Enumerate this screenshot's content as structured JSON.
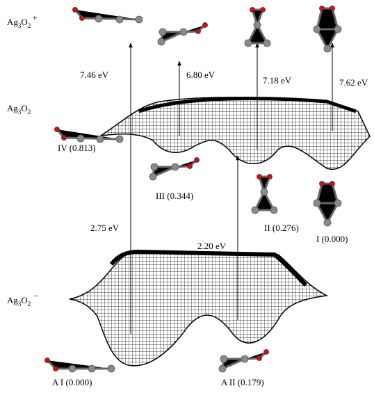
{
  "species_labels": {
    "cation": {
      "element1": "Ag",
      "count1": "3",
      "element2": "O",
      "count2": "2",
      "charge": "+"
    },
    "neutral": {
      "element1": "Ag",
      "count1": "3",
      "element2": "O",
      "count2": "2"
    },
    "anion": {
      "element1": "Ag",
      "count1": "3",
      "element2": "O",
      "count2": "2",
      "charge": "−"
    }
  },
  "transitions": [
    "7.46 eV",
    "6.80 eV",
    "7.18 eV",
    "7.62 eV",
    "2.75 eV",
    "2.20 eV"
  ],
  "neutral_isomers": [
    "IV (0.813)",
    "III (0.344)",
    "II (0.276)",
    "I (0.000)"
  ],
  "anion_isomers": [
    "A I (0.000)",
    "A II (0.179)"
  ]
}
